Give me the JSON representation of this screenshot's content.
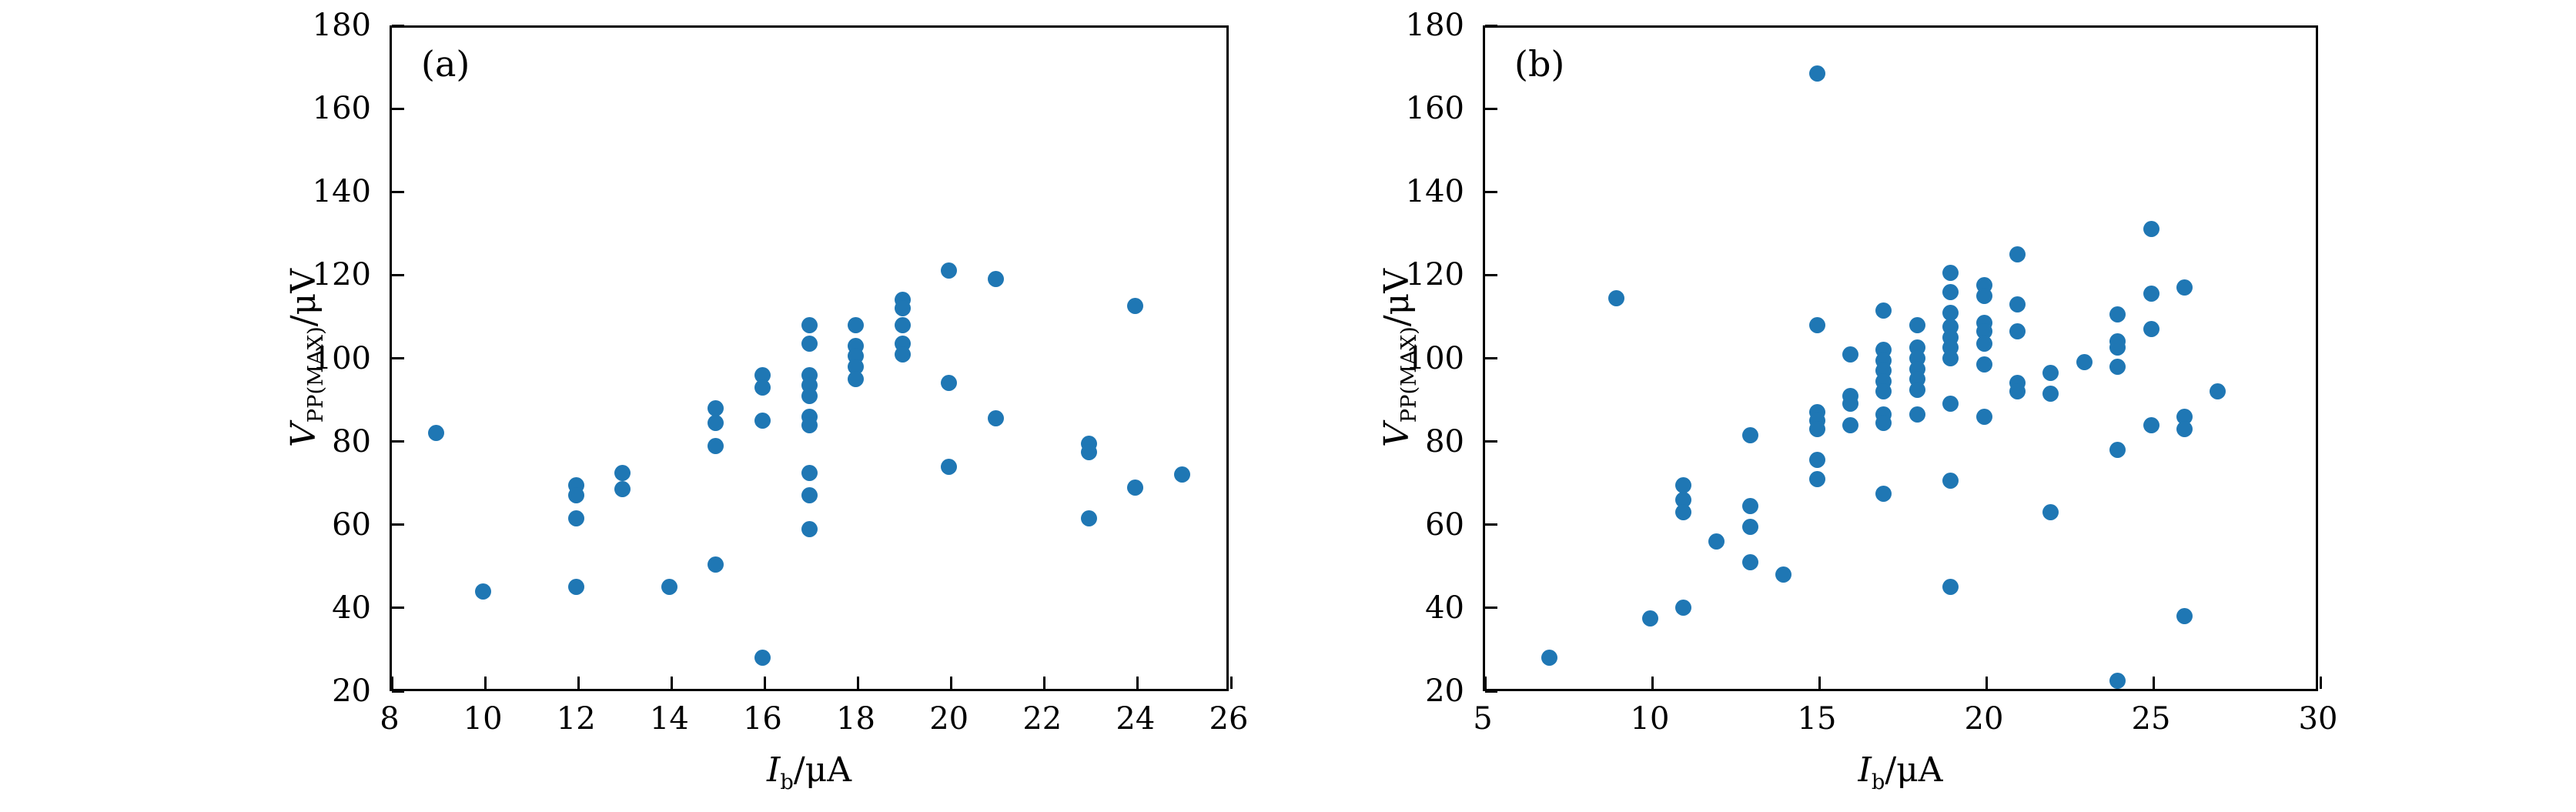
{
  "figure": {
    "background": "#ffffff",
    "marker_color": "#1f77b4",
    "axis_color": "#000000"
  },
  "chart_data": [
    {
      "type": "scatter",
      "panel_label": "(a)",
      "xlabel": {
        "var": "I",
        "sub": "b",
        "rest": "/μA"
      },
      "ylabel": {
        "var": "V",
        "sub": "PP(MAX)",
        "rest": "/μV"
      },
      "xlim": [
        8,
        26
      ],
      "ylim": [
        20,
        180
      ],
      "xticks": [
        8,
        10,
        12,
        14,
        16,
        18,
        20,
        22,
        24,
        26
      ],
      "yticks": [
        20,
        40,
        60,
        80,
        100,
        120,
        140,
        160,
        180
      ],
      "grid": false,
      "legend": null,
      "marker_color": "#1f77b4",
      "points": [
        [
          9,
          82
        ],
        [
          10,
          44
        ],
        [
          12,
          69.5
        ],
        [
          12,
          67
        ],
        [
          12,
          61.5
        ],
        [
          12,
          45
        ],
        [
          13,
          72.5
        ],
        [
          13,
          68.5
        ],
        [
          14,
          45
        ],
        [
          15,
          88
        ],
        [
          15,
          84.5
        ],
        [
          15,
          79
        ],
        [
          15,
          50.5
        ],
        [
          16,
          96
        ],
        [
          16,
          93
        ],
        [
          16,
          85
        ],
        [
          16,
          28
        ],
        [
          17,
          108
        ],
        [
          17,
          103.5
        ],
        [
          17,
          96
        ],
        [
          17,
          93.5
        ],
        [
          17,
          91
        ],
        [
          17,
          86
        ],
        [
          17,
          84
        ],
        [
          17,
          72.5
        ],
        [
          17,
          67
        ],
        [
          17,
          59
        ],
        [
          18,
          108
        ],
        [
          18,
          103
        ],
        [
          18,
          100.5
        ],
        [
          18,
          98
        ],
        [
          18,
          95
        ],
        [
          19,
          114
        ],
        [
          19,
          112
        ],
        [
          19,
          108
        ],
        [
          19,
          103.5
        ],
        [
          19,
          101
        ],
        [
          20,
          121
        ],
        [
          20,
          94
        ],
        [
          20,
          74
        ],
        [
          21,
          119
        ],
        [
          21,
          85.5
        ],
        [
          23,
          79.5
        ],
        [
          23,
          77.5
        ],
        [
          23,
          61.5
        ],
        [
          24,
          112.5
        ],
        [
          24,
          69
        ],
        [
          25,
          72
        ]
      ]
    },
    {
      "type": "scatter",
      "panel_label": "(b)",
      "xlabel": {
        "var": "I",
        "sub": "b",
        "rest": "/μA"
      },
      "ylabel": {
        "var": "V",
        "sub": "PP(MAX)",
        "rest": "/μV"
      },
      "xlim": [
        5,
        30
      ],
      "ylim": [
        20,
        180
      ],
      "xticks": [
        5,
        10,
        15,
        20,
        25,
        30
      ],
      "yticks": [
        20,
        40,
        60,
        80,
        100,
        120,
        140,
        160,
        180
      ],
      "grid": false,
      "legend": null,
      "marker_color": "#1f77b4",
      "points": [
        [
          7,
          28
        ],
        [
          9,
          114.5
        ],
        [
          10,
          37.5
        ],
        [
          11,
          69.5
        ],
        [
          11,
          66
        ],
        [
          11,
          63
        ],
        [
          11,
          40
        ],
        [
          12,
          56
        ],
        [
          13,
          81.5
        ],
        [
          13,
          64.5
        ],
        [
          13,
          59.5
        ],
        [
          13,
          51
        ],
        [
          14,
          48
        ],
        [
          15,
          168.5
        ],
        [
          15,
          108
        ],
        [
          15,
          87
        ],
        [
          15,
          85
        ],
        [
          15,
          83
        ],
        [
          15,
          75.5
        ],
        [
          15,
          71
        ],
        [
          16,
          101
        ],
        [
          16,
          91
        ],
        [
          16,
          89
        ],
        [
          16,
          84
        ],
        [
          17,
          111.5
        ],
        [
          17,
          102
        ],
        [
          17,
          99.5
        ],
        [
          17,
          97
        ],
        [
          17,
          94.5
        ],
        [
          17,
          92
        ],
        [
          17,
          86.5
        ],
        [
          17,
          84.5
        ],
        [
          17,
          67.5
        ],
        [
          18,
          108
        ],
        [
          18,
          102.5
        ],
        [
          18,
          100
        ],
        [
          18,
          97.5
        ],
        [
          18,
          95
        ],
        [
          18,
          92.5
        ],
        [
          18,
          86.5
        ],
        [
          19,
          120.5
        ],
        [
          19,
          116
        ],
        [
          19,
          111
        ],
        [
          19,
          107.5
        ],
        [
          19,
          105
        ],
        [
          19,
          102.5
        ],
        [
          19,
          100
        ],
        [
          19,
          89
        ],
        [
          19,
          70.5
        ],
        [
          19,
          45
        ],
        [
          20,
          117.5
        ],
        [
          20,
          115
        ],
        [
          20,
          108.5
        ],
        [
          20,
          106.5
        ],
        [
          20,
          103.5
        ],
        [
          20,
          98.5
        ],
        [
          20,
          86
        ],
        [
          21,
          125
        ],
        [
          21,
          113
        ],
        [
          21,
          106.5
        ],
        [
          21,
          94
        ],
        [
          21,
          92
        ],
        [
          22,
          96.5
        ],
        [
          22,
          91.5
        ],
        [
          22,
          63
        ],
        [
          23,
          99
        ],
        [
          24,
          110.5
        ],
        [
          24,
          104
        ],
        [
          24,
          102.5
        ],
        [
          24,
          98
        ],
        [
          24,
          78
        ],
        [
          24,
          22.5
        ],
        [
          25,
          131
        ],
        [
          25,
          115.5
        ],
        [
          25,
          107
        ],
        [
          25,
          84
        ],
        [
          26,
          117
        ],
        [
          26,
          86
        ],
        [
          26,
          83
        ],
        [
          26,
          38
        ],
        [
          27,
          92
        ]
      ]
    }
  ]
}
